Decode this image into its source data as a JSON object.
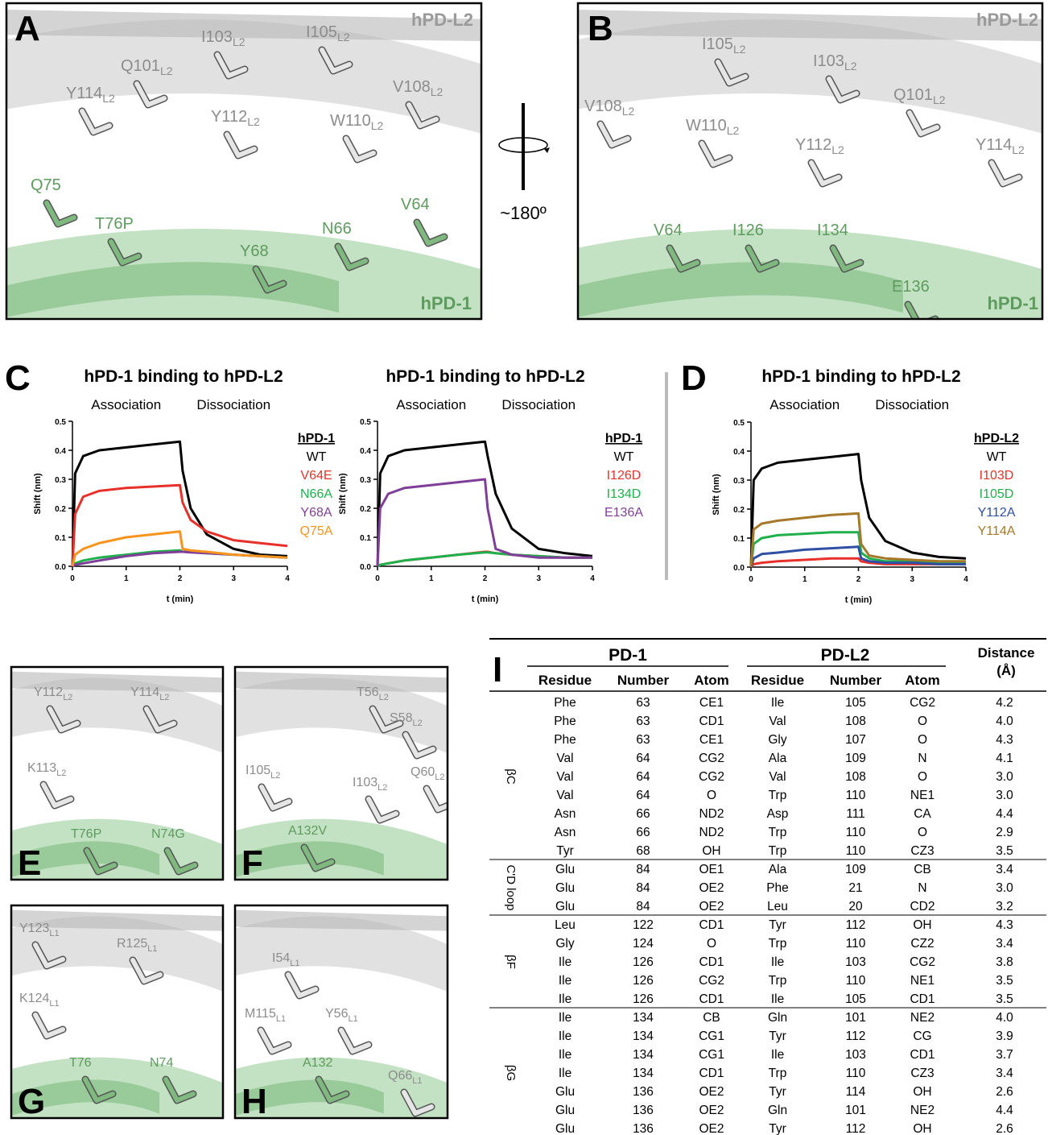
{
  "chart_data": [
    {
      "type": "line",
      "panel_label": "C",
      "title": "hPD-1 binding to hPD-L2",
      "annotations": [
        "Association",
        "Dissociation"
      ],
      "xlabel": "t (min)",
      "ylabel": "Shift (nm)",
      "legend_title": "hPD-1",
      "x": [
        0,
        0.05,
        0.2,
        0.5,
        1,
        1.5,
        2,
        2.05,
        2.2,
        2.5,
        3,
        3.5,
        4
      ],
      "xlim": [
        0,
        4
      ],
      "xticks": [
        0,
        1,
        2,
        3,
        4
      ],
      "ylim": [
        0,
        0.5
      ],
      "yticks": [
        {
          "value": 0,
          "label": "0.0"
        },
        0.1,
        0.2,
        0.3,
        0.4,
        0.5
      ],
      "series": [
        {
          "name": "WT",
          "color": "#000000",
          "values": [
            0,
            0.32,
            0.38,
            0.4,
            0.41,
            0.42,
            0.43,
            0.33,
            0.2,
            0.11,
            0.06,
            0.04,
            0.035
          ]
        },
        {
          "name": "V64E",
          "color": "#e8302a",
          "values": [
            0,
            0.18,
            0.24,
            0.26,
            0.27,
            0.275,
            0.28,
            0.22,
            0.16,
            0.12,
            0.09,
            0.08,
            0.07
          ]
        },
        {
          "name": "N66A",
          "color": "#1fb04b",
          "values": [
            0,
            0.01,
            0.02,
            0.03,
            0.04,
            0.05,
            0.055,
            0.05,
            0.05,
            0.045,
            0.04,
            0.035,
            0.03
          ]
        },
        {
          "name": "Y68A",
          "color": "#7f3f98",
          "values": [
            0,
            0.005,
            0.01,
            0.02,
            0.035,
            0.045,
            0.05,
            0.05,
            0.048,
            0.045,
            0.04,
            0.035,
            0.03
          ]
        },
        {
          "name": "Q75A",
          "color": "#f7941d",
          "values": [
            0,
            0.04,
            0.06,
            0.08,
            0.1,
            0.11,
            0.12,
            0.06,
            0.055,
            0.05,
            0.04,
            0.035,
            0.03
          ]
        }
      ]
    },
    {
      "type": "line",
      "title": "hPD-1 binding to hPD-L2",
      "annotations": [
        "Association",
        "Dissociation"
      ],
      "xlabel": "t (min)",
      "ylabel": "Shift (nm)",
      "legend_title": "hPD-1",
      "x": [
        0,
        0.05,
        0.2,
        0.5,
        1,
        1.5,
        2,
        2.05,
        2.2,
        2.5,
        3,
        3.5,
        4
      ],
      "xlim": [
        0,
        4
      ],
      "xticks": [
        0,
        1,
        2,
        3,
        4
      ],
      "ylim": [
        0,
        0.5
      ],
      "yticks": [
        {
          "value": 0,
          "label": "0.0"
        },
        0.1,
        0.2,
        0.3,
        0.4,
        0.5
      ],
      "series": [
        {
          "name": "WT",
          "color": "#000000",
          "values": [
            0,
            0.32,
            0.38,
            0.4,
            0.41,
            0.42,
            0.43,
            0.38,
            0.25,
            0.13,
            0.06,
            0.045,
            0.035
          ]
        },
        {
          "name": "I126D",
          "color": "#e8302a",
          "values": [
            0,
            0.005,
            0.01,
            0.02,
            0.03,
            0.04,
            0.05,
            0.05,
            0.045,
            0.04,
            0.035,
            0.03,
            0.03
          ]
        },
        {
          "name": "I134D",
          "color": "#1fb04b",
          "values": [
            0,
            0.005,
            0.01,
            0.02,
            0.03,
            0.04,
            0.048,
            0.048,
            0.045,
            0.04,
            0.035,
            0.03,
            0.03
          ]
        },
        {
          "name": "E136A",
          "color": "#7f3f98",
          "values": [
            0,
            0.2,
            0.25,
            0.27,
            0.28,
            0.29,
            0.3,
            0.2,
            0.06,
            0.04,
            0.03,
            0.03,
            0.03
          ]
        }
      ]
    },
    {
      "type": "line",
      "panel_label": "D",
      "title": "hPD-1 binding to hPD-L2",
      "annotations": [
        "Association",
        "Dissociation"
      ],
      "xlabel": "t (min)",
      "ylabel": "Shift (nm)",
      "legend_title": "hPD-L2",
      "x": [
        0,
        0.05,
        0.2,
        0.5,
        1,
        1.5,
        2,
        2.05,
        2.2,
        2.5,
        3,
        3.5,
        4
      ],
      "xlim": [
        0,
        4
      ],
      "xticks": [
        0,
        1,
        2,
        3,
        4
      ],
      "ylim": [
        0,
        0.5
      ],
      "yticks": [
        {
          "value": 0,
          "label": "0.0"
        },
        0.1,
        0.2,
        0.3,
        0.4,
        0.5
      ],
      "series": [
        {
          "name": "WT",
          "color": "#000000",
          "values": [
            0,
            0.3,
            0.34,
            0.36,
            0.37,
            0.38,
            0.39,
            0.3,
            0.17,
            0.09,
            0.05,
            0.035,
            0.03
          ]
        },
        {
          "name": "I103D",
          "color": "#e8302a",
          "values": [
            0,
            0.01,
            0.015,
            0.02,
            0.025,
            0.03,
            0.03,
            0.02,
            0.015,
            0.01,
            0.01,
            0.01,
            0.01
          ]
        },
        {
          "name": "I105D",
          "color": "#1fb04b",
          "values": [
            0,
            0.08,
            0.1,
            0.11,
            0.115,
            0.12,
            0.12,
            0.05,
            0.03,
            0.02,
            0.02,
            0.015,
            0.015
          ]
        },
        {
          "name": "Y112A",
          "color": "#2e4fa2",
          "values": [
            0,
            0.03,
            0.045,
            0.05,
            0.06,
            0.065,
            0.07,
            0.03,
            0.02,
            0.015,
            0.015,
            0.01,
            0.01
          ]
        },
        {
          "name": "Y114A",
          "color": "#a6782a",
          "values": [
            0,
            0.13,
            0.15,
            0.16,
            0.17,
            0.18,
            0.185,
            0.08,
            0.04,
            0.03,
            0.025,
            0.02,
            0.02
          ]
        }
      ]
    }
  ],
  "rotation": "~180º",
  "structures": [
    {
      "letter": "A",
      "chains": [
        "hPD-L2",
        "hPD-1"
      ],
      "labels": [
        {
          "text": "Q101",
          "sub": "L2"
        },
        {
          "text": "I103",
          "sub": "L2"
        },
        {
          "text": "I105",
          "sub": "L2"
        },
        {
          "text": "Y114",
          "sub": "L2"
        },
        {
          "text": "Y112",
          "sub": "L2"
        },
        {
          "text": "W110",
          "sub": "L2"
        },
        {
          "text": "V108",
          "sub": "L2"
        },
        "Q75",
        "T76P",
        "Y68",
        "N66",
        "V64"
      ]
    },
    {
      "letter": "B",
      "chains": [
        "hPD-L2",
        "hPD-1"
      ],
      "labels": [
        {
          "text": "I105",
          "sub": "L2"
        },
        {
          "text": "I103",
          "sub": "L2"
        },
        {
          "text": "Q101",
          "sub": "L2"
        },
        {
          "text": "V108",
          "sub": "L2"
        },
        {
          "text": "W110",
          "sub": "L2"
        },
        {
          "text": "Y112",
          "sub": "L2"
        },
        {
          "text": "Y114",
          "sub": "L2"
        },
        "V64",
        "I126",
        "I134",
        "E136"
      ]
    },
    {
      "letter": "E",
      "labels": [
        {
          "text": "Y112",
          "sub": "L2"
        },
        {
          "text": "Y114",
          "sub": "L2"
        },
        {
          "text": "K113",
          "sub": "L2"
        },
        "T76P",
        "N74G"
      ]
    },
    {
      "letter": "F",
      "labels": [
        {
          "text": "T56",
          "sub": "L2"
        },
        {
          "text": "S58",
          "sub": "L2"
        },
        {
          "text": "I105",
          "sub": "L2"
        },
        {
          "text": "I103",
          "sub": "L2"
        },
        {
          "text": "Q60",
          "sub": "L2"
        },
        "A132V"
      ]
    },
    {
      "letter": "G",
      "labels": [
        {
          "text": "Y123",
          "sub": "L1"
        },
        {
          "text": "R125",
          "sub": "L1"
        },
        {
          "text": "K124",
          "sub": "L1"
        },
        "T76",
        "N74"
      ]
    },
    {
      "letter": "H",
      "labels": [
        {
          "text": "I54",
          "sub": "L1"
        },
        {
          "text": "M115",
          "sub": "L1"
        },
        {
          "text": "Y56",
          "sub": "L1"
        },
        "A132",
        {
          "text": "Q66",
          "sub": "L1"
        }
      ]
    }
  ],
  "table": {
    "letter": "I",
    "group_headers": [
      "PD-1",
      "PD-L2",
      "Distance (Å)"
    ],
    "columns": [
      "Residue",
      "Number",
      "Atom",
      "Residue",
      "Number",
      "Atom"
    ],
    "sections": [
      {
        "label": "βC",
        "rows": [
          [
            "Phe",
            "63",
            "CE1",
            "Ile",
            "105",
            "CG2",
            "4.2"
          ],
          [
            "Phe",
            "63",
            "CD1",
            "Val",
            "108",
            "O",
            "4.0"
          ],
          [
            "Phe",
            "63",
            "CE1",
            "Gly",
            "107",
            "O",
            "4.3"
          ],
          [
            "Val",
            "64",
            "CG2",
            "Ala",
            "109",
            "N",
            "4.1"
          ],
          [
            "Val",
            "64",
            "CG2",
            "Val",
            "108",
            "O",
            "3.0"
          ],
          [
            "Val",
            "64",
            "O",
            "Trp",
            "110",
            "NE1",
            "3.0"
          ],
          [
            "Asn",
            "66",
            "ND2",
            "Asp",
            "111",
            "CA",
            "4.4"
          ],
          [
            "Asn",
            "66",
            "ND2",
            "Trp",
            "110",
            "O",
            "2.9"
          ],
          [
            "Tyr",
            "68",
            "OH",
            "Trp",
            "110",
            "CZ3",
            "3.5"
          ]
        ]
      },
      {
        "label": "C'D loop",
        "rows": [
          [
            "Glu",
            "84",
            "OE1",
            "Ala",
            "109",
            "CB",
            "3.4"
          ],
          [
            "Glu",
            "84",
            "OE2",
            "Phe",
            "21",
            "N",
            "3.0"
          ],
          [
            "Glu",
            "84",
            "OE2",
            "Leu",
            "20",
            "CD2",
            "3.2"
          ]
        ]
      },
      {
        "label": "βF",
        "rows": [
          [
            "Leu",
            "122",
            "CD1",
            "Tyr",
            "112",
            "OH",
            "4.3"
          ],
          [
            "Gly",
            "124",
            "O",
            "Trp",
            "110",
            "CZ2",
            "3.4"
          ],
          [
            "Ile",
            "126",
            "CD1",
            "Ile",
            "103",
            "CG2",
            "3.8"
          ],
          [
            "Ile",
            "126",
            "CG2",
            "Trp",
            "110",
            "NE1",
            "3.5"
          ],
          [
            "Ile",
            "126",
            "CD1",
            "Ile",
            "105",
            "CD1",
            "3.5"
          ]
        ]
      },
      {
        "label": "βG",
        "rows": [
          [
            "Ile",
            "134",
            "CB",
            "Gln",
            "101",
            "NE2",
            "4.0"
          ],
          [
            "Ile",
            "134",
            "CG1",
            "Tyr",
            "112",
            "CG",
            "3.9"
          ],
          [
            "Ile",
            "134",
            "CG1",
            "Ile",
            "103",
            "CD1",
            "3.7"
          ],
          [
            "Ile",
            "134",
            "CD1",
            "Trp",
            "110",
            "CZ3",
            "3.4"
          ],
          [
            "Glu",
            "136",
            "OE2",
            "Tyr",
            "114",
            "OH",
            "2.6"
          ],
          [
            "Glu",
            "136",
            "OE2",
            "Gln",
            "101",
            "NE2",
            "4.4"
          ],
          [
            "Glu",
            "136",
            "OE2",
            "Tyr",
            "112",
            "OH",
            "2.6"
          ]
        ]
      }
    ]
  }
}
